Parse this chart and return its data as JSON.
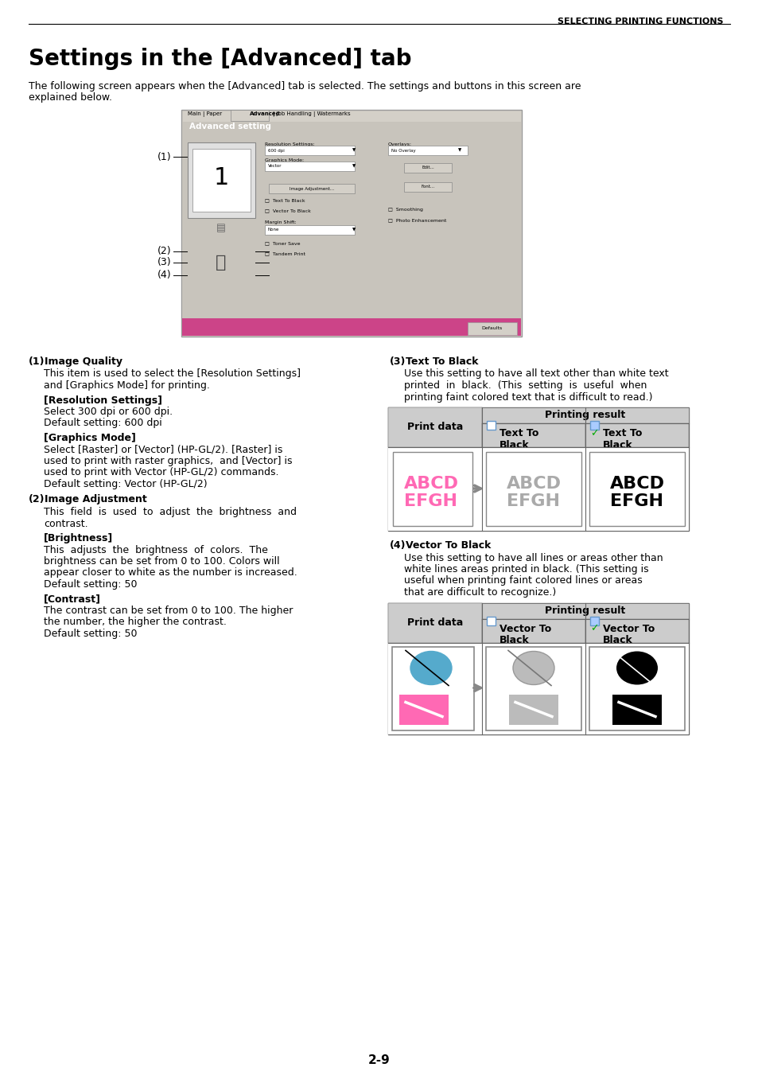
{
  "page_header": "SELECTING PRINTING FUNCTIONS",
  "title": "Settings in the [Advanced] tab",
  "intro_line1": "The following screen appears when the [Advanced] tab is selected. The settings and buttons in this screen are",
  "intro_line2": "explained below.",
  "s1_head": "(1) Image Quality",
  "s1_b1": "This item is used to select the [Resolution Settings]",
  "s1_b2": "and [Graphics Mode] for printing.",
  "s1_s1h": "[Resolution Settings]",
  "s1_s1b1": "Select 300 dpi or 600 dpi.",
  "s1_s1b2": "Default setting: 600 dpi",
  "s1_s2h": "[Graphics Mode]",
  "s1_s2b1": "Select [Raster] or [Vector] (HP-GL/2). [Raster] is",
  "s1_s2b2": "used to print with raster graphics,  and [Vector] is",
  "s1_s2b3": "used to print with Vector (HP-GL/2) commands.",
  "s1_s2b4": "Default setting: Vector (HP-GL/2)",
  "s2_head": "(2) Image Adjustment",
  "s2_b1": "This  field  is  used  to  adjust  the  brightness  and",
  "s2_b2": "contrast.",
  "s2_s1h": "[Brightness]",
  "s2_s1b1": "This  adjusts  the  brightness  of  colors.  The",
  "s2_s1b2": "brightness can be set from 0 to 100. Colors will",
  "s2_s1b3": "appear closer to white as the number is increased.",
  "s2_s1b4": "Default setting: 50",
  "s2_s2h": "[Contrast]",
  "s2_s2b1": "The contrast can be set from 0 to 100. The higher",
  "s2_s2b2": "the number, the higher the contrast.",
  "s2_s2b3": "Default setting: 50",
  "s3_head": "(3) Text To Black",
  "s3_b1": "Use this setting to have all text other than white text",
  "s3_b2": "printed  in  black.  (This  setting  is  useful  when",
  "s3_b3": "printing faint colored text that is difficult to read.)",
  "s4_head": "(4) Vector To Black",
  "s4_b1": "Use this setting to have all lines or areas other than",
  "s4_b2": "white lines areas printed in black. (This setting is",
  "s4_b3": "useful when printing faint colored lines or areas",
  "s4_b4": "that are difficult to recognize.)",
  "t1_header": "Printing result",
  "t1_pd": "Print data",
  "t1_c2": "Text To\nBlack",
  "t1_c3": "Text To\nBlack",
  "t2_header": "Printing result",
  "t2_pd": "Print data",
  "t2_c2": "Vector To\nBlack",
  "t2_c3": "Vector To\nBlack",
  "abcd_pink": "#FF69B4",
  "abcd_gray": "#AAAAAA",
  "cyan_color": "#55AACC",
  "pink_rect": "#FF69B4",
  "gray_color": "#AAAAAA",
  "page_number": "2-9",
  "bg": "#FFFFFF",
  "dialog_bg": "#C8C4BC",
  "dialog_banner": "#CC4488",
  "body_fs": 9.0,
  "heading_fs": 9.0,
  "title_fs": 20
}
